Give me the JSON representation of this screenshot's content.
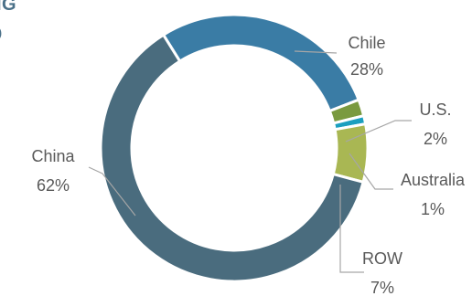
{
  "header": {
    "title_fragment": "IG",
    "subtitle_fragment": ")"
  },
  "chart_data": {
    "type": "pie",
    "variant": "donut",
    "title": "",
    "categories": [
      "Chile",
      "U.S.",
      "Australia",
      "ROW",
      "China"
    ],
    "values": [
      28,
      2,
      1,
      7,
      62
    ],
    "labels": [
      "28%",
      "2%",
      "1%",
      "7%",
      "62%"
    ],
    "colors": [
      "#3a7ca5",
      "#7a9a3f",
      "#1b9fbf",
      "#a9b753",
      "#4a6c7e"
    ],
    "legend": "none"
  }
}
